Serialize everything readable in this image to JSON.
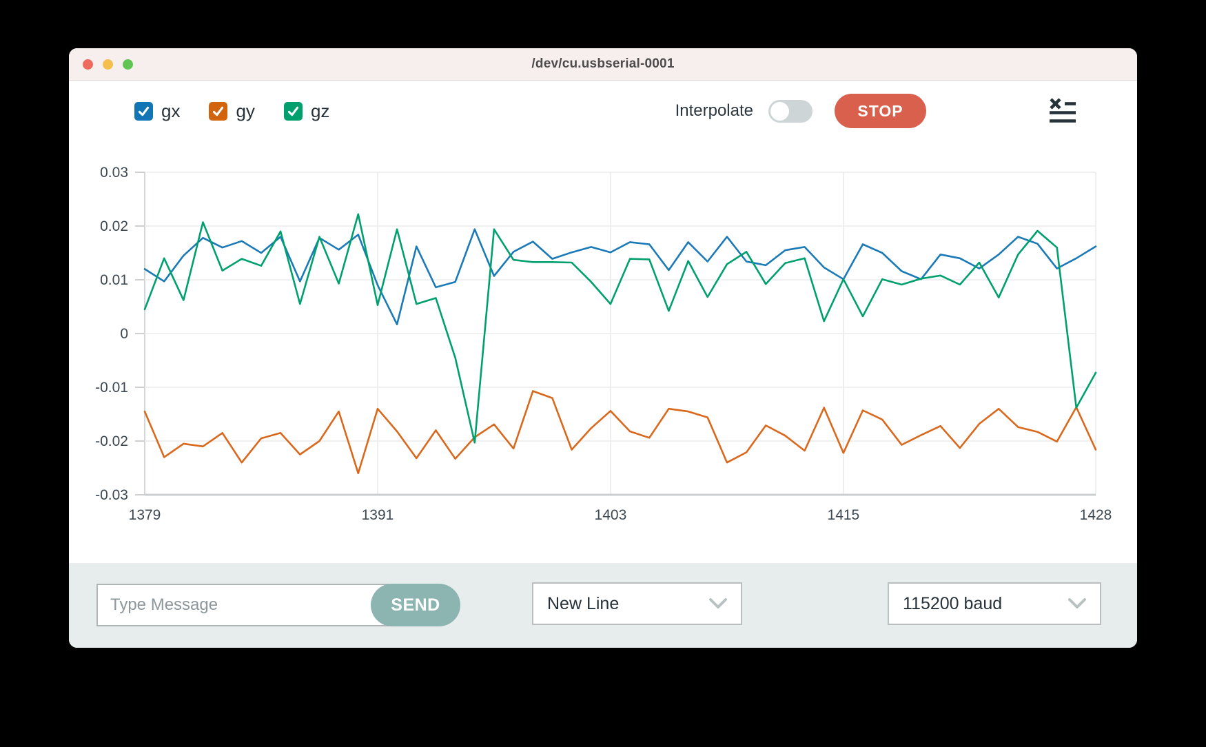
{
  "window": {
    "title": "/dev/cu.usbserial-0001"
  },
  "traffic_lights": [
    {
      "name": "close-button",
      "color": "#ee6a5f"
    },
    {
      "name": "minimize-button",
      "color": "#f5bf4f"
    },
    {
      "name": "zoom-button",
      "color": "#61c554"
    }
  ],
  "legend": {
    "items": [
      {
        "label": "gx",
        "color": "#1276b4",
        "checked": true
      },
      {
        "label": "gy",
        "color": "#d2640d",
        "checked": true
      },
      {
        "label": "gz",
        "color": "#00a06e",
        "checked": true
      }
    ]
  },
  "controls": {
    "interpolate_label": "Interpolate",
    "interpolate_on": false,
    "stop_label": "STOP",
    "stop_color": "#d8604c"
  },
  "chart_data": {
    "type": "line",
    "x": [
      1379,
      1380,
      1381,
      1382,
      1383,
      1384,
      1385,
      1386,
      1387,
      1388,
      1389,
      1390,
      1391,
      1392,
      1393,
      1394,
      1395,
      1396,
      1397,
      1398,
      1399,
      1400,
      1401,
      1402,
      1403,
      1404,
      1405,
      1406,
      1407,
      1408,
      1409,
      1410,
      1411,
      1412,
      1413,
      1414,
      1415,
      1416,
      1417,
      1418,
      1419,
      1420,
      1421,
      1422,
      1423,
      1424,
      1425,
      1426,
      1427,
      1428
    ],
    "series": [
      {
        "name": "gx",
        "color": "#1a79b7",
        "values": [
          0.012,
          0.0097,
          0.0145,
          0.0178,
          0.016,
          0.0172,
          0.015,
          0.018,
          0.0097,
          0.0178,
          0.0156,
          0.0184,
          0.009,
          0.0017,
          0.0162,
          0.0086,
          0.0096,
          0.0194,
          0.0107,
          0.0152,
          0.0171,
          0.0139,
          0.0151,
          0.0161,
          0.0151,
          0.017,
          0.0166,
          0.0118,
          0.017,
          0.0134,
          0.018,
          0.0134,
          0.0127,
          0.0155,
          0.0161,
          0.0123,
          0.0101,
          0.0166,
          0.015,
          0.0116,
          0.0101,
          0.0147,
          0.014,
          0.0121,
          0.0147,
          0.018,
          0.0167,
          0.0121,
          0.014,
          0.0162
        ]
      },
      {
        "name": "gy",
        "color": "#da681c",
        "values": [
          -0.0145,
          -0.023,
          -0.0205,
          -0.021,
          -0.0185,
          -0.024,
          -0.0195,
          -0.0185,
          -0.0225,
          -0.02,
          -0.0145,
          -0.026,
          -0.014,
          -0.0182,
          -0.0232,
          -0.018,
          -0.0233,
          -0.0193,
          -0.0169,
          -0.0214,
          -0.0107,
          -0.012,
          -0.0216,
          -0.0176,
          -0.0144,
          -0.0182,
          -0.0194,
          -0.014,
          -0.0145,
          -0.0156,
          -0.024,
          -0.0221,
          -0.0171,
          -0.019,
          -0.0218,
          -0.0138,
          -0.0222,
          -0.0143,
          -0.016,
          -0.0207,
          -0.0189,
          -0.0172,
          -0.0213,
          -0.0168,
          -0.014,
          -0.0174,
          -0.0183,
          -0.0201,
          -0.0137,
          -0.0216
        ]
      },
      {
        "name": "gz",
        "color": "#00a06e",
        "values": [
          0.0045,
          0.014,
          0.0062,
          0.0207,
          0.0117,
          0.0139,
          0.0126,
          0.019,
          0.0055,
          0.018,
          0.0093,
          0.0222,
          0.0053,
          0.0194,
          0.0055,
          0.0066,
          -0.0045,
          -0.0203,
          0.0194,
          0.0137,
          0.0133,
          0.0133,
          0.0132,
          0.0096,
          0.0055,
          0.0139,
          0.0138,
          0.0042,
          0.0135,
          0.0068,
          0.0129,
          0.0152,
          0.0092,
          0.0131,
          0.014,
          0.0023,
          0.0101,
          0.0032,
          0.0101,
          0.0091,
          0.0102,
          0.0108,
          0.0091,
          0.0132,
          0.0067,
          0.0147,
          0.0191,
          0.016,
          -0.0138,
          -0.0073
        ]
      }
    ],
    "ylim": [
      -0.03,
      0.03
    ],
    "yticks": [
      0.03,
      0.02,
      0.01,
      0,
      -0.01,
      -0.02,
      -0.03
    ],
    "xticks": [
      1379,
      1391,
      1403,
      1415,
      1428
    ],
    "grid": true,
    "legend_position": "top-left"
  },
  "footer": {
    "message_placeholder": "Type Message",
    "send_label": "SEND",
    "line_ending_selected": "New Line",
    "baud_selected": "115200 baud"
  }
}
